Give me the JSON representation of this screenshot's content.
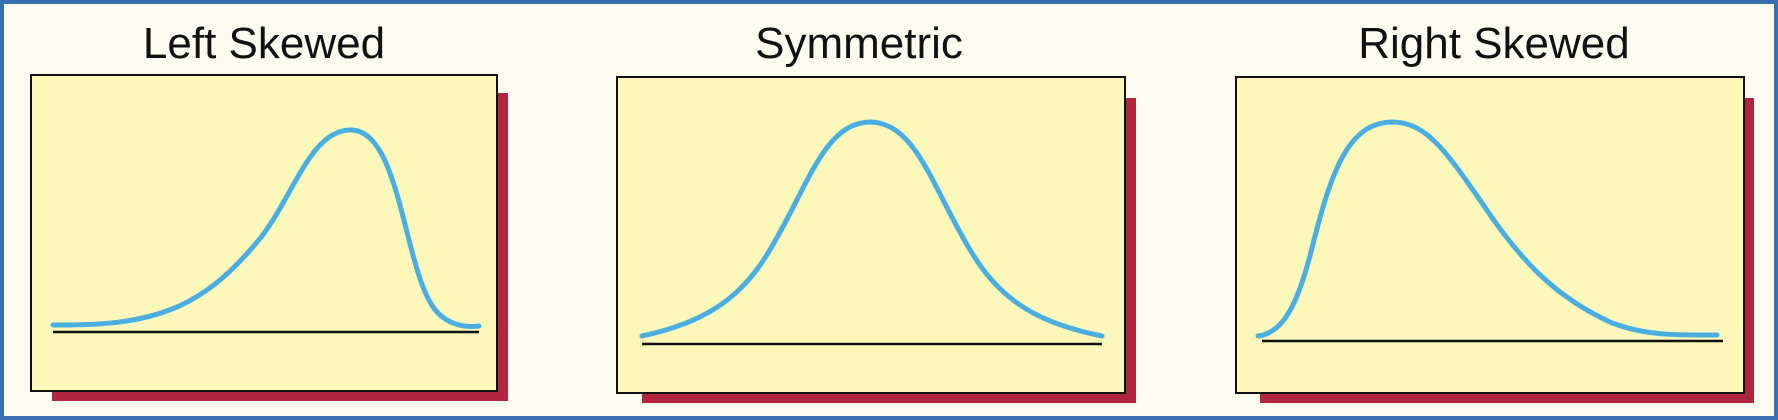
{
  "diagram": {
    "panels": [
      {
        "title": "Left Skewed",
        "shape": "left-skewed"
      },
      {
        "title": "Symmetric",
        "shape": "symmetric"
      },
      {
        "title": "Right Skewed",
        "shape": "right-skewed"
      }
    ],
    "colors": {
      "border": "#3a6fb0",
      "background": "#fdfcf0",
      "card": "#fcf8bb",
      "shadow": "#b0253f",
      "curve": "#4aaee0",
      "baseline": "#111111"
    }
  }
}
